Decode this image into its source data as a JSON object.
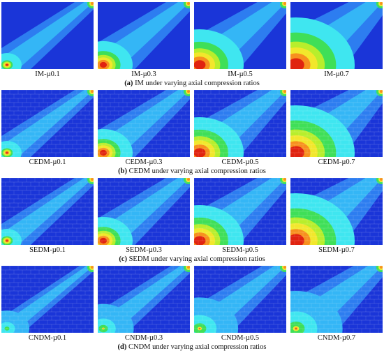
{
  "colors": {
    "dark_blue": "#1a35d8",
    "mid_blue": "#2d7df0",
    "light_blue": "#34b6f6",
    "cyan": "#3fe6f0",
    "green": "#3fdf58",
    "yellow_green": "#b8ee2c",
    "yellow": "#f2e72c",
    "orange": "#f7901f",
    "red": "#e02310"
  },
  "sections": [
    {
      "caption_letter": "(a)",
      "caption_text": " IM under varying axial compression ratios",
      "brick": false,
      "panels": [
        {
          "label": "IM-µ0.1",
          "level": 0.1
        },
        {
          "label": "IM-µ0.3",
          "level": 0.3
        },
        {
          "label": "IM-µ0.5",
          "level": 0.5
        },
        {
          "label": "IM-µ0.7",
          "level": 0.7
        }
      ]
    },
    {
      "caption_letter": "(b)",
      "caption_text": " CEDM under varying axial compression ratios",
      "brick": true,
      "panels": [
        {
          "label": "CEDM-µ0.1",
          "level": 0.1
        },
        {
          "label": "CEDM-µ0.3",
          "level": 0.3
        },
        {
          "label": "CEDM-µ0.5",
          "level": 0.5
        },
        {
          "label": "CEDM-µ0.7",
          "level": 0.7
        }
      ]
    },
    {
      "caption_letter": "(c)",
      "caption_text": " SEDM under varying axial compression ratios",
      "brick": true,
      "panels": [
        {
          "label": "SEDM-µ0.1",
          "level": 0.1
        },
        {
          "label": "SEDM-µ0.3",
          "level": 0.3
        },
        {
          "label": "SEDM-µ0.5",
          "level": 0.5
        },
        {
          "label": "SEDM-µ0.7",
          "level": 0.7
        }
      ]
    },
    {
      "caption_letter": "(d)",
      "caption_text": " CNDM under varying axial compression ratios",
      "brick": true,
      "panels": [
        {
          "label": "CNDM-µ0.1",
          "level": 0.1
        },
        {
          "label": "CNDM-µ0.3",
          "level": 0.3
        },
        {
          "label": "CNDM-µ0.5",
          "level": 0.5
        },
        {
          "label": "CNDM-µ0.7",
          "level": 0.7
        }
      ]
    }
  ]
}
